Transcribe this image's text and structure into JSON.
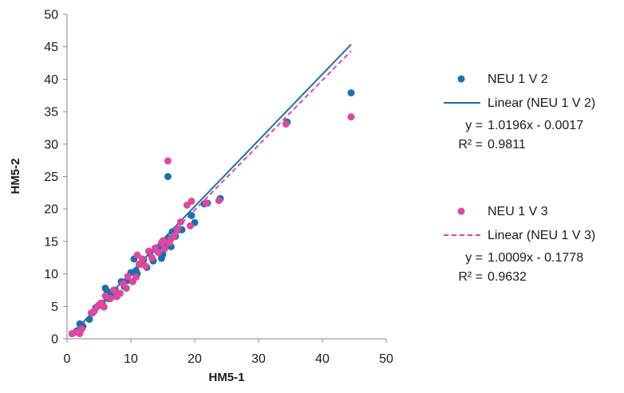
{
  "chart_data": {
    "type": "scatter",
    "xlabel": "HM5-1",
    "ylabel": "HM5-2",
    "xlim": [
      0,
      50
    ],
    "ylim": [
      0,
      50
    ],
    "xticks": [
      0,
      10,
      20,
      30,
      40,
      50
    ],
    "yticks": [
      0,
      5,
      10,
      15,
      20,
      25,
      30,
      35,
      40,
      45,
      50
    ],
    "grid": "off",
    "legend_position": "right",
    "series": [
      {
        "name": "NEU 1 V 2",
        "color": "#1f6fae",
        "points": [
          [
            0.8,
            0.8
          ],
          [
            1.5,
            1.2
          ],
          [
            2.0,
            2.3
          ],
          [
            2.5,
            1.9
          ],
          [
            3.5,
            3.0
          ],
          [
            4.0,
            4.0
          ],
          [
            4.5,
            4.8
          ],
          [
            5.0,
            5.2
          ],
          [
            5.5,
            5.5
          ],
          [
            6.0,
            7.8
          ],
          [
            6.3,
            7.3
          ],
          [
            6.5,
            6.2
          ],
          [
            7.0,
            6.8
          ],
          [
            7.5,
            7.5
          ],
          [
            8.0,
            7.0
          ],
          [
            8.5,
            8.8
          ],
          [
            9.0,
            8.0
          ],
          [
            9.5,
            9.0
          ],
          [
            10.0,
            10.2
          ],
          [
            10.5,
            12.3
          ],
          [
            10.8,
            10.5
          ],
          [
            11.0,
            10.0
          ],
          [
            11.5,
            11.5
          ],
          [
            12.0,
            12.2
          ],
          [
            12.5,
            11.0
          ],
          [
            13.0,
            13.2
          ],
          [
            13.5,
            12.0
          ],
          [
            14.0,
            13.7
          ],
          [
            14.5,
            14.2
          ],
          [
            14.8,
            12.4
          ],
          [
            15.0,
            13.0
          ],
          [
            15.5,
            14.4
          ],
          [
            15.8,
            25.0
          ],
          [
            16.0,
            15.5
          ],
          [
            16.3,
            14.2
          ],
          [
            16.5,
            16.5
          ],
          [
            17.0,
            15.8
          ],
          [
            17.5,
            16.8
          ],
          [
            18.0,
            16.8
          ],
          [
            19.5,
            19.0
          ],
          [
            20.0,
            17.9
          ],
          [
            21.5,
            20.8
          ],
          [
            22.0,
            20.9
          ],
          [
            24.0,
            21.6
          ],
          [
            34.5,
            33.4
          ],
          [
            44.5,
            37.9
          ]
        ],
        "trendline": {
          "name": "Linear (NEU 1 V 2)",
          "style": "solid",
          "equation": "y = 1.0196x - 0.0017",
          "r2": "0.9811",
          "slope": 1.0196,
          "intercept": -0.0017,
          "x_range": [
            0.5,
            44.5
          ]
        }
      },
      {
        "name": "NEU 1 V 3",
        "color": "#e0479e",
        "points": [
          [
            0.8,
            0.8
          ],
          [
            1.5,
            1.0
          ],
          [
            2.0,
            0.8
          ],
          [
            2.3,
            1.5
          ],
          [
            3.8,
            4.0
          ],
          [
            4.3,
            4.3
          ],
          [
            4.8,
            5.0
          ],
          [
            5.3,
            5.5
          ],
          [
            5.8,
            4.9
          ],
          [
            6.0,
            6.6
          ],
          [
            6.8,
            6.2
          ],
          [
            7.3,
            7.5
          ],
          [
            7.8,
            6.5
          ],
          [
            8.3,
            7.0
          ],
          [
            8.8,
            8.5
          ],
          [
            9.3,
            7.8
          ],
          [
            9.5,
            9.6
          ],
          [
            10.3,
            8.8
          ],
          [
            10.8,
            9.5
          ],
          [
            11.0,
            12.9
          ],
          [
            11.3,
            11.5
          ],
          [
            11.8,
            12.3
          ],
          [
            12.3,
            11.2
          ],
          [
            12.8,
            13.5
          ],
          [
            13.3,
            12.5
          ],
          [
            13.8,
            14.0
          ],
          [
            14.3,
            13.3
          ],
          [
            14.8,
            14.8
          ],
          [
            15.0,
            15.1
          ],
          [
            15.3,
            13.9
          ],
          [
            15.8,
            27.4
          ],
          [
            16.0,
            14.8
          ],
          [
            16.3,
            15.4
          ],
          [
            16.8,
            15.9
          ],
          [
            17.3,
            16.9
          ],
          [
            17.8,
            18.0
          ],
          [
            18.8,
            20.6
          ],
          [
            19.3,
            17.4
          ],
          [
            19.5,
            21.2
          ],
          [
            21.8,
            20.9
          ],
          [
            23.8,
            21.3
          ],
          [
            34.3,
            33.1
          ],
          [
            44.5,
            34.2
          ]
        ],
        "trendline": {
          "name": "Linear (NEU 1 V 3)",
          "style": "dashed",
          "equation": "y = 1.0009x - 0.1778",
          "r2": "0.9632",
          "slope": 1.0009,
          "intercept": -0.1778,
          "x_range": [
            0.5,
            44.5
          ]
        }
      }
    ],
    "legend": [
      {
        "kind": "marker",
        "series": 0,
        "label": "NEU 1 V 2"
      },
      {
        "kind": "line",
        "series": 0,
        "label": "Linear (NEU 1 V 2)"
      },
      {
        "kind": "eq",
        "series": 0,
        "y_label": "y =",
        "y_value": "1.0196x - 0.0017",
        "r_label": "R² =",
        "r_value": "0.9811"
      },
      {
        "kind": "marker",
        "series": 1,
        "label": "NEU 1 V 3"
      },
      {
        "kind": "line",
        "series": 1,
        "label": "Linear (NEU 1 V 3)"
      },
      {
        "kind": "eq",
        "series": 1,
        "y_label": "y =",
        "y_value": "1.0009x - 0.1778",
        "r_label": "R² =",
        "r_value": "0.9632"
      }
    ]
  }
}
